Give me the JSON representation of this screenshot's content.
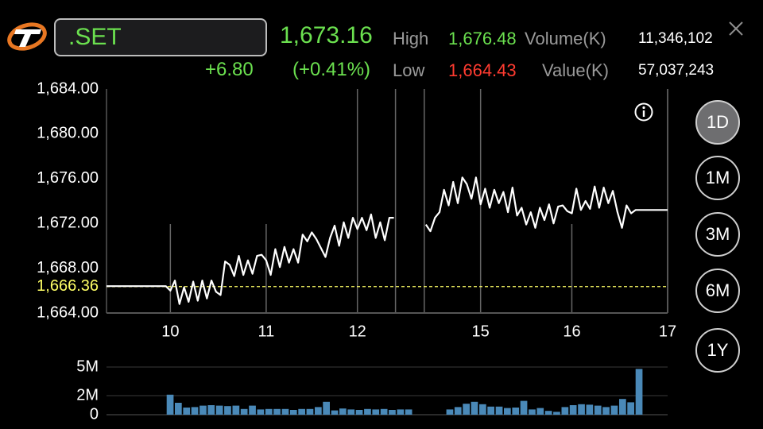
{
  "symbol": ".SET",
  "price": "1,673.16",
  "change": "+6.80",
  "change_pct": "(+0.41%)",
  "stats": {
    "high_label": "High",
    "high_value": "1,676.48",
    "low_label": "Low",
    "low_value": "1,664.43",
    "volume_label": "Volume(K)",
    "volume_value": "11,346,102",
    "value_label": "Value(K)",
    "value_value": "57,037,243"
  },
  "timeframes": [
    "1D",
    "1M",
    "3M",
    "6M",
    "1Y"
  ],
  "active_timeframe": "1D",
  "colors": {
    "up": "#6be04f",
    "down": "#ff3b30",
    "prev_close": "#ffff66",
    "volume": "#4a89b8",
    "line": "#ffffff"
  },
  "chart_data": {
    "type": "line",
    "title": "",
    "xlabel": "",
    "ylabel": "",
    "ylim": [
      1664,
      1684
    ],
    "yticks": [
      "1,684.00",
      "1,680.00",
      "1,676.00",
      "1,672.00",
      "1,668.00",
      "1,664.00"
    ],
    "prev_close": 1666.36,
    "prev_close_label": "1,666.36",
    "xticks": [
      "10",
      "11",
      "12",
      "15",
      "16",
      "17"
    ],
    "series": [
      {
        "values": [
          1666.4,
          1666.4,
          1666.4,
          1666.4,
          1666.4,
          1666.4,
          1666.4,
          1666.4,
          1666.4,
          1666.4,
          1666.4,
          1666.4,
          1666.4,
          1666.4,
          1666.0,
          1666.9,
          1664.8,
          1666.3,
          1665.0,
          1666.8,
          1665.1,
          1666.9,
          1665.3,
          1666.9,
          1665.9,
          1665.6,
          1668.6,
          1668.3,
          1667.3,
          1669.1,
          1667.4,
          1668.7,
          1667.5,
          1669.1,
          1669.2,
          1668.7,
          1667.4,
          1669.7,
          1668.1,
          1669.9,
          1668.5,
          1669.7,
          1668.5,
          1671.0,
          1670.4,
          1671.2,
          1670.6,
          1669.8,
          1669.0,
          1670.7,
          1671.8,
          1670.0,
          1672.1,
          1670.7,
          1672.5,
          1671.5,
          1672.5,
          1671.4,
          1672.8,
          1670.7,
          1672.1,
          1670.5,
          1672.5,
          1672.5,
          null,
          null,
          null,
          null,
          null,
          null,
          1671.9,
          1671.3,
          1672.5,
          1673.0,
          1675.0,
          1673.6,
          1675.7,
          1673.8,
          1676.1,
          1675.5,
          1674.2,
          1676.1,
          1673.7,
          1675.1,
          1673.4,
          1675.0,
          1673.8,
          1674.8,
          1673.0,
          1675.2,
          1672.7,
          1673.4,
          1671.9,
          1673.0,
          1671.6,
          1673.4,
          1672.3,
          1673.7,
          1672.0,
          1673.5,
          1673.6,
          1673.1,
          1672.9,
          1675.1,
          1673.2,
          1674.0,
          1673.3,
          1675.3,
          1673.4,
          1675.2,
          1673.8,
          1674.9,
          1673.0,
          1671.6,
          1673.6,
          1672.9,
          1673.2,
          1673.2,
          1673.2,
          1673.2,
          1673.2,
          1673.2,
          1673.2,
          1673.2
        ]
      }
    ],
    "volume": {
      "yticks": [
        "5M",
        "2M",
        "0"
      ],
      "ylim": [
        0,
        5.5
      ],
      "values": [
        2.1,
        1.25,
        0.75,
        0.8,
        0.95,
        1.0,
        0.95,
        0.9,
        0.95,
        0.6,
        0.95,
        0.55,
        0.6,
        0.6,
        0.6,
        0.5,
        0.6,
        0.6,
        0.8,
        1.35,
        0.45,
        0.65,
        0.55,
        0.5,
        0.6,
        0.55,
        0.6,
        0.5,
        0.55,
        0.55,
        null,
        null,
        null,
        null,
        0.55,
        0.8,
        1.15,
        1.35,
        1.1,
        0.85,
        0.85,
        0.7,
        0.75,
        1.45,
        0.55,
        0.7,
        0.4,
        0.3,
        0.8,
        1.0,
        1.1,
        1.05,
        0.95,
        0.8,
        0.95,
        1.65,
        1.3,
        4.8
      ]
    }
  }
}
